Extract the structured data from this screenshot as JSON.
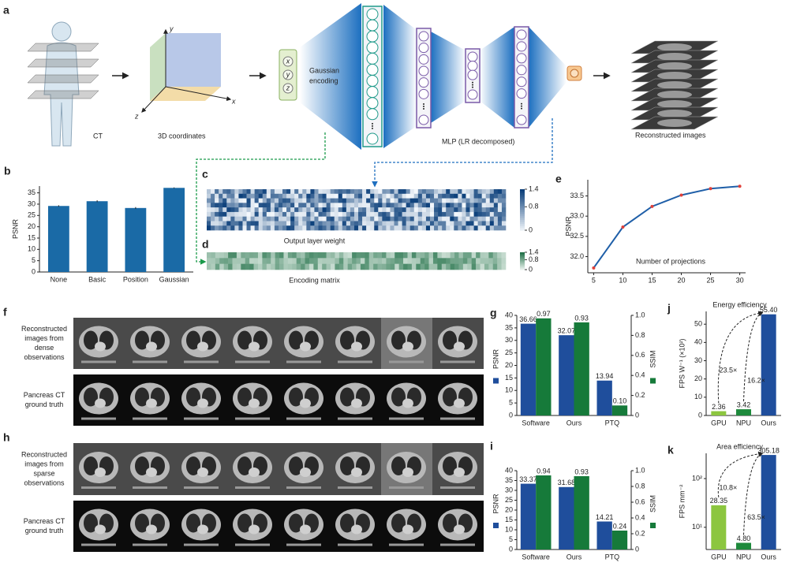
{
  "diagram": {
    "panel": "a",
    "body_label": "CT",
    "coords_label": "3D coordinates",
    "axes": [
      "x",
      "y",
      "z"
    ],
    "inputs": [
      "x",
      "y",
      "z"
    ],
    "encoding": [
      "Gaussian",
      "encoding"
    ],
    "mlp_label": "MLP (LR decomposed)",
    "output_label": "Reconstructed images"
  },
  "image_grids": [
    {
      "panel": "f",
      "rows": [
        [
          "Reconstructed",
          "images from",
          "dense",
          "observations"
        ],
        [
          "Pancreas CT",
          "ground truth"
        ]
      ]
    },
    {
      "panel": "h",
      "rows": [
        [
          "Reconstructed",
          "images from",
          "sparse",
          "observations"
        ],
        [
          "Pancreas CT",
          "ground truth"
        ]
      ]
    }
  ],
  "chart_data": [
    {
      "type": "bar",
      "panel": "b",
      "categories": [
        "None",
        "Basic",
        "Position",
        "Gaussian"
      ],
      "values": [
        29.2,
        31.3,
        28.3,
        37.2
      ],
      "errors": [
        0.3,
        0.4,
        0.4,
        0.2
      ],
      "color": "#1a6aa6",
      "ylabel": "PSNR",
      "ylim": [
        0,
        38
      ],
      "yticks": [
        0,
        5,
        10,
        15,
        20,
        25,
        30,
        35
      ]
    },
    {
      "type": "heatmap",
      "panel": "c",
      "xlabel": "Output layer weight",
      "colormap": [
        "#f4f8fc",
        "#0b3f7a"
      ],
      "clim": [
        0,
        1.4
      ],
      "cticks": [
        0,
        0.8,
        1.4
      ]
    },
    {
      "type": "heatmap",
      "panel": "d",
      "xlabel": "Encoding matrix",
      "colormap": [
        "#f2f8f4",
        "#1e6e45"
      ],
      "clim": [
        0,
        1.4
      ],
      "cticks": [
        0,
        0.8,
        1.4
      ]
    },
    {
      "type": "line",
      "panel": "e",
      "x": [
        5,
        10,
        15,
        20,
        25,
        30
      ],
      "values": [
        31.72,
        32.73,
        33.24,
        33.52,
        33.68,
        33.74
      ],
      "color": "#1f5fa8",
      "marker_color": "#e0403a",
      "ylabel": "PSNR",
      "xlabel": "Number of projections",
      "xlim": [
        4,
        31
      ],
      "xticks": [
        5,
        10,
        15,
        20,
        25,
        30
      ],
      "ylim": [
        31.6,
        33.9
      ],
      "yticks": [
        {
          "value": 32,
          "label": "32.0"
        },
        32.5,
        {
          "value": 33,
          "label": "33.0"
        },
        33.5
      ]
    },
    {
      "type": "bar",
      "panel": "g",
      "data_labels": true,
      "categories": [
        "Software",
        "Ours",
        "PTQ"
      ],
      "series": [
        {
          "name": "PSNR",
          "color": "#1f4e9c",
          "values": [
            36.66,
            32.07,
            13.94
          ]
        },
        {
          "name": "SSIM",
          "color": "#167a3a",
          "axis": "y2",
          "values": [
            0.97,
            0.93,
            0.1
          ],
          "value_labels": [
            "0.97",
            "0.93",
            "0.10"
          ]
        }
      ],
      "ylim": [
        0,
        40
      ],
      "yticks": [
        0,
        5,
        10,
        15,
        20,
        25,
        30,
        35,
        40
      ],
      "y2lim": [
        0,
        1
      ],
      "y2ticks": [
        0,
        0.2,
        0.4,
        0.6,
        0.8,
        {
          "value": 1,
          "label": "1.0"
        }
      ]
    },
    {
      "type": "bar",
      "panel": "i",
      "data_labels": true,
      "categories": [
        "Software",
        "Ours",
        "PTQ"
      ],
      "series": [
        {
          "name": "PSNR",
          "color": "#1f4e9c",
          "values": [
            33.37,
            31.68,
            14.21
          ]
        },
        {
          "name": "SSIM",
          "color": "#167a3a",
          "axis": "y2",
          "values": [
            0.94,
            0.93,
            0.24
          ]
        }
      ],
      "ylim": [
        0,
        40
      ],
      "yticks": [
        0,
        5,
        10,
        15,
        20,
        25,
        30,
        35,
        40
      ],
      "y2lim": [
        0,
        1
      ],
      "y2ticks": [
        0,
        0.2,
        0.4,
        0.6,
        0.8,
        {
          "value": 1,
          "label": "1.0"
        }
      ]
    },
    {
      "type": "bar",
      "panel": "j",
      "data_labels": true,
      "title": "Energy efficiency",
      "categories": [
        "GPU",
        "NPU",
        "Ours"
      ],
      "values": [
        2.36,
        3.42,
        55.4
      ],
      "value_labels": [
        "2.36",
        "3.42",
        "55.40"
      ],
      "colors": [
        "#8cc63f",
        "#1e8a3c",
        "#1f4e9c"
      ],
      "ylabel": "FPS W⁻¹ (×10²)",
      "ylim": [
        0,
        57
      ],
      "yticks": [
        0,
        10,
        20,
        30,
        40,
        50
      ],
      "annotations": [
        "23.5×",
        "16.2×"
      ]
    },
    {
      "type": "bar",
      "panel": "k",
      "data_labels": true,
      "log_scale": true,
      "title": "Area efficiency",
      "categories": [
        "GPU",
        "NPU",
        "Ours"
      ],
      "values": [
        28.35,
        4.8,
        305.18
      ],
      "value_labels": [
        "28.35",
        "4.80",
        "305.18"
      ],
      "colors": [
        "#8cc63f",
        "#1e8a3c",
        "#1f4e9c"
      ],
      "ylabel": "FPS mm⁻²",
      "ylim": [
        3.5,
        330
      ],
      "yticks": [
        {
          "value": 10,
          "label": "10¹"
        },
        {
          "value": 100,
          "label": "10²"
        }
      ],
      "annotations": [
        "10.8×",
        "63.5×"
      ]
    }
  ]
}
